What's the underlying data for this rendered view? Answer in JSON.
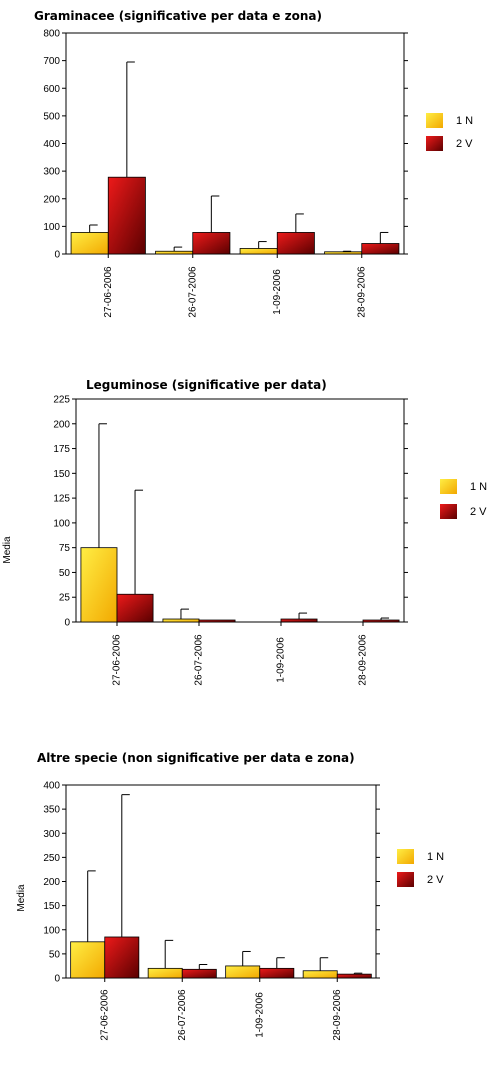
{
  "colors": {
    "s1_light": "#ffee44",
    "s1_dark": "#f2a800",
    "s2_light": "#ee1a1a",
    "s2_dark": "#5a0000"
  },
  "chart_data": [
    {
      "type": "bar",
      "title": "Graminacee (significative per data e zona)",
      "ylabel": "",
      "xlabel": "",
      "categories": [
        "27-06-2006",
        "26-07-2006",
        "1-09-2006",
        "28-09-2006"
      ],
      "ylim": [
        0,
        800
      ],
      "yticks": [
        0,
        100,
        200,
        300,
        400,
        500,
        600,
        700,
        800
      ],
      "series": [
        {
          "name": "1 N",
          "values": [
            78,
            10,
            20,
            8
          ],
          "err": [
            105,
            25,
            45,
            10
          ]
        },
        {
          "name": "2 V",
          "values": [
            278,
            78,
            78,
            38
          ],
          "err": [
            695,
            210,
            145,
            78
          ]
        }
      ],
      "legend": "right"
    },
    {
      "type": "bar",
      "title": "Leguminose (significative per data)",
      "ylabel": "Media",
      "xlabel": "",
      "categories": [
        "27-06-2006",
        "26-07-2006",
        "1-09-2006",
        "28-09-2006"
      ],
      "ylim": [
        0,
        225
      ],
      "yticks": [
        0,
        25,
        50,
        75,
        100,
        125,
        150,
        175,
        200,
        225
      ],
      "series": [
        {
          "name": "1 N",
          "values": [
            75,
            3,
            0,
            0
          ],
          "err": [
            200,
            13,
            0,
            0
          ]
        },
        {
          "name": "2 V",
          "values": [
            28,
            2,
            3,
            2
          ],
          "err": [
            133,
            2,
            9,
            4
          ]
        }
      ],
      "legend": "right"
    },
    {
      "type": "bar",
      "title": "Altre specie (non significative per data e zona)",
      "ylabel": "Media",
      "xlabel": "",
      "categories": [
        "27-06-2006",
        "26-07-2006",
        "1-09-2006",
        "28-09-2006"
      ],
      "ylim": [
        0,
        400
      ],
      "yticks": [
        0,
        50,
        100,
        150,
        200,
        250,
        300,
        350,
        400
      ],
      "series": [
        {
          "name": "1 N",
          "values": [
            75,
            20,
            25,
            15
          ],
          "err": [
            222,
            78,
            55,
            42
          ]
        },
        {
          "name": "2 V",
          "values": [
            85,
            18,
            20,
            8
          ],
          "err": [
            380,
            28,
            42,
            10
          ]
        }
      ],
      "legend": "right"
    }
  ]
}
